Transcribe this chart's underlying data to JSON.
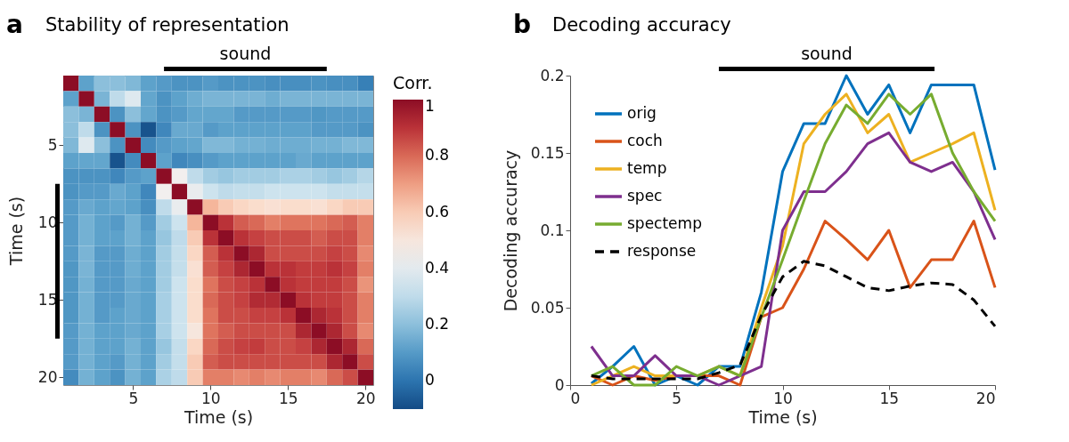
{
  "chart_data": [
    {
      "type": "heatmap",
      "title": "Stability of representation",
      "xlabel": "Time (s)",
      "ylabel": "Time (s)",
      "clabel": "Corr.",
      "annotations": [
        "a",
        "sound"
      ],
      "categories": [
        null,
        null,
        null,
        null,
        "5",
        null,
        null,
        null,
        null,
        "10",
        null,
        null,
        null,
        null,
        "15",
        null,
        null,
        null,
        null,
        "20"
      ],
      "y_categories": [
        null,
        null,
        null,
        null,
        "5",
        null,
        null,
        null,
        null,
        "10",
        null,
        null,
        null,
        null,
        "15",
        null,
        null,
        null,
        null,
        "20"
      ],
      "cells": [
        [
          1,
          0.12,
          0.2,
          0.2,
          0.18,
          0.12,
          0.1,
          0.08,
          0.08,
          0.1,
          0.08,
          0.08,
          0.08,
          0.07,
          0.07,
          0.07,
          0.08,
          0.07,
          0.07,
          0.03
        ],
        [
          0.12,
          1,
          0.17,
          0.3,
          0.38,
          0.13,
          0.08,
          0.12,
          0.15,
          0.17,
          0.17,
          0.17,
          0.17,
          0.15,
          0.17,
          0.17,
          0.17,
          0.17,
          0.17,
          0.17
        ],
        [
          0.2,
          0.17,
          1,
          0.08,
          0.2,
          0.13,
          0.08,
          0.1,
          0.13,
          0.13,
          0.13,
          0.1,
          0.1,
          0.1,
          0.1,
          0.1,
          0.09,
          0.1,
          0.1,
          0.1
        ],
        [
          0.2,
          0.3,
          0.08,
          1,
          0.08,
          -0.08,
          0.05,
          0.14,
          0.14,
          0.1,
          0.12,
          0.12,
          0.12,
          0.12,
          0.12,
          0.12,
          0.1,
          0.1,
          0.1,
          0.08
        ],
        [
          0.18,
          0.38,
          0.2,
          0.08,
          1,
          0.06,
          0.1,
          0.12,
          0.13,
          0.18,
          0.18,
          0.16,
          0.16,
          0.15,
          0.15,
          0.15,
          0.16,
          0.16,
          0.18,
          0.18
        ],
        [
          0.12,
          0.13,
          0.13,
          -0.08,
          0.06,
          1,
          0.12,
          0.05,
          0.07,
          0.1,
          0.12,
          0.12,
          0.12,
          0.12,
          0.12,
          0.14,
          0.12,
          0.12,
          0.12,
          0.12
        ],
        [
          0.08,
          0.08,
          0.08,
          0.05,
          0.1,
          0.12,
          1,
          0.45,
          0.3,
          0.24,
          0.22,
          0.24,
          0.24,
          0.24,
          0.26,
          0.26,
          0.24,
          0.22,
          0.24,
          0.28
        ],
        [
          0.08,
          0.1,
          0.1,
          0.14,
          0.12,
          0.05,
          0.45,
          1,
          0.42,
          0.33,
          0.3,
          0.31,
          0.31,
          0.33,
          0.33,
          0.33,
          0.33,
          0.31,
          0.31,
          0.31
        ],
        [
          0.1,
          0.14,
          0.12,
          0.13,
          0.12,
          0.07,
          0.3,
          0.42,
          1,
          0.65,
          0.6,
          0.57,
          0.55,
          0.53,
          0.55,
          0.55,
          0.53,
          0.57,
          0.6,
          0.6
        ],
        [
          0.1,
          0.16,
          0.12,
          0.1,
          0.16,
          0.1,
          0.24,
          0.33,
          0.65,
          1,
          0.9,
          0.82,
          0.8,
          0.76,
          0.78,
          0.78,
          0.78,
          0.8,
          0.82,
          0.76
        ],
        [
          0.1,
          0.16,
          0.12,
          0.12,
          0.16,
          0.12,
          0.22,
          0.3,
          0.6,
          0.9,
          1,
          0.9,
          0.87,
          0.85,
          0.85,
          0.85,
          0.82,
          0.85,
          0.85,
          0.76
        ],
        [
          0.1,
          0.17,
          0.1,
          0.1,
          0.15,
          0.12,
          0.24,
          0.31,
          0.57,
          0.82,
          0.9,
          1,
          0.93,
          0.85,
          0.85,
          0.85,
          0.85,
          0.87,
          0.85,
          0.74
        ],
        [
          0.09,
          0.17,
          0.1,
          0.1,
          0.15,
          0.12,
          0.24,
          0.31,
          0.53,
          0.82,
          0.87,
          0.93,
          1,
          0.9,
          0.9,
          0.88,
          0.88,
          0.9,
          0.87,
          0.76
        ],
        [
          0.09,
          0.16,
          0.1,
          0.1,
          0.14,
          0.12,
          0.24,
          0.33,
          0.55,
          0.78,
          0.85,
          0.87,
          0.9,
          1,
          0.9,
          0.88,
          0.88,
          0.88,
          0.85,
          0.72
        ],
        [
          0.09,
          0.16,
          0.1,
          0.1,
          0.14,
          0.12,
          0.25,
          0.33,
          0.55,
          0.8,
          0.85,
          0.87,
          0.92,
          0.92,
          1,
          0.9,
          0.88,
          0.88,
          0.85,
          0.76
        ],
        [
          0.09,
          0.16,
          0.1,
          0.12,
          0.14,
          0.12,
          0.25,
          0.33,
          0.55,
          0.78,
          0.85,
          0.85,
          0.87,
          0.87,
          0.9,
          1,
          0.93,
          0.9,
          0.85,
          0.76
        ],
        [
          0.1,
          0.16,
          0.12,
          0.12,
          0.14,
          0.12,
          0.25,
          0.33,
          0.5,
          0.78,
          0.82,
          0.85,
          0.85,
          0.85,
          0.85,
          0.93,
          1,
          0.93,
          0.85,
          0.74
        ],
        [
          0.1,
          0.16,
          0.12,
          0.12,
          0.16,
          0.12,
          0.22,
          0.31,
          0.57,
          0.8,
          0.85,
          0.87,
          0.88,
          0.85,
          0.85,
          0.87,
          0.93,
          1,
          0.93,
          0.8
        ],
        [
          0.1,
          0.16,
          0.12,
          0.1,
          0.16,
          0.12,
          0.24,
          0.31,
          0.6,
          0.82,
          0.85,
          0.85,
          0.85,
          0.85,
          0.85,
          0.85,
          0.85,
          0.93,
          1,
          0.85
        ],
        [
          0.06,
          0.16,
          0.12,
          0.08,
          0.16,
          0.12,
          0.26,
          0.3,
          0.6,
          0.76,
          0.76,
          0.74,
          0.76,
          0.74,
          0.76,
          0.76,
          0.74,
          0.8,
          0.85,
          1
        ]
      ],
      "clim": [
        -0.1,
        1
      ],
      "cticks": [
        0,
        0.2,
        0.4,
        0.6,
        0.8,
        1
      ]
    },
    {
      "type": "line",
      "title": "Decoding accuracy",
      "xlabel": "Time (s)",
      "ylabel": "Decoding accuracy",
      "annotations": [
        "b",
        "sound"
      ],
      "x": [
        1,
        2,
        3,
        4,
        5,
        6,
        7,
        8,
        9,
        10,
        11,
        12,
        13,
        14,
        15,
        16,
        17,
        18,
        19,
        20
      ],
      "xlim": [
        0,
        20
      ],
      "xticks": [
        0,
        5,
        10,
        15,
        20
      ],
      "ylim": [
        0,
        0.2
      ],
      "yticks": [
        0,
        0.05,
        0.1,
        0.15,
        0.2
      ],
      "legend": "top left",
      "grid": false,
      "series": [
        {
          "name": "orig",
          "color": "#0072bd",
          "values": [
            0.001,
            0.012,
            0.025,
            0,
            0.006,
            0,
            0.012,
            0.012,
            0.06,
            0.138,
            0.169,
            0.169,
            0.2,
            0.175,
            0.194,
            0.163,
            0.194,
            0.194,
            0.194,
            0.139
          ]
        },
        {
          "name": "coch",
          "color": "#d95319",
          "values": [
            0.006,
            0,
            0.006,
            0.003,
            0.006,
            0.006,
            0.006,
            0,
            0.044,
            0.05,
            0.075,
            0.106,
            0.094,
            0.081,
            0.1,
            0.063,
            0.081,
            0.081,
            0.106,
            0.063
          ]
        },
        {
          "name": "temp",
          "color": "#edb120",
          "values": [
            0,
            0.006,
            0.012,
            0.006,
            0.006,
            0.006,
            0.012,
            0.006,
            0.05,
            0.09,
            0.156,
            0.175,
            0.188,
            0.163,
            0.175,
            0.144,
            0.15,
            0.156,
            0.163,
            0.113
          ]
        },
        {
          "name": "spec",
          "color": "#7e2f8e",
          "values": [
            0.025,
            0.006,
            0.006,
            0.019,
            0.006,
            0.006,
            0,
            0.006,
            0.012,
            0.1,
            0.125,
            0.125,
            0.138,
            0.156,
            0.163,
            0.144,
            0.138,
            0.144,
            0.125,
            0.094
          ]
        },
        {
          "name": "spectemp",
          "color": "#77ac30",
          "values": [
            0.006,
            0.012,
            0,
            0,
            0.012,
            0.006,
            0.012,
            0.006,
            0.044,
            0.081,
            0.119,
            0.156,
            0.181,
            0.169,
            0.188,
            0.175,
            0.188,
            0.15,
            0.125,
            0.106
          ]
        },
        {
          "name": "response",
          "color": "#000000",
          "line_style": "dashed",
          "values": [
            0.006,
            0.004,
            0.004,
            0.004,
            0.004,
            0.004,
            0.008,
            0.013,
            0.045,
            0.07,
            0.08,
            0.077,
            0.07,
            0.063,
            0.061,
            0.064,
            0.066,
            0.065,
            0.055,
            0.038
          ]
        }
      ]
    }
  ]
}
